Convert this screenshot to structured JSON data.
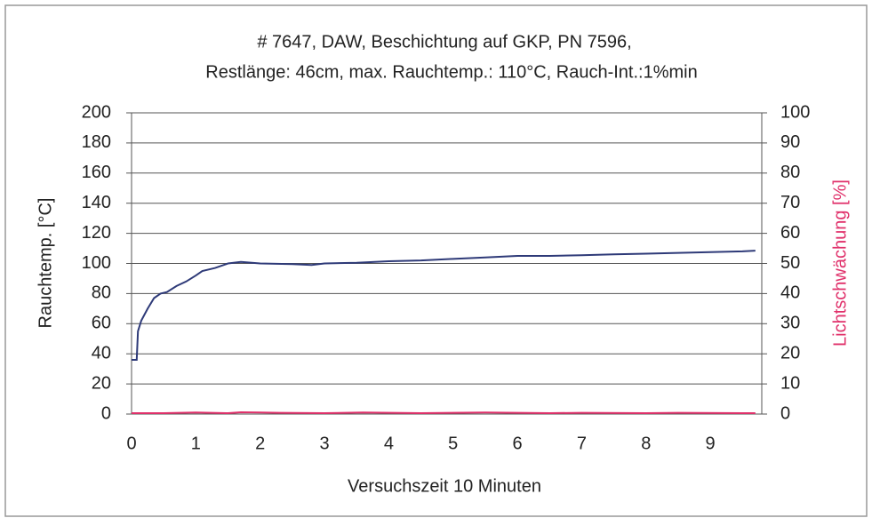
{
  "chart_data": {
    "type": "line",
    "title": [
      "# 7647, DAW, Beschichtung auf GKP, PN 7596,",
      "Restlänge: 46cm, max. Rauchtemp.: 110°C, Rauch-Int.:1%min"
    ],
    "xlabel": "Versuchszeit 10 Minuten",
    "ylabel": "Rauchtemp. [°C]",
    "y2label": "Lichtschwächung [%]",
    "xlim": [
      0,
      9.8
    ],
    "xticks": [
      0,
      1,
      2,
      3,
      4,
      5,
      6,
      7,
      8,
      9
    ],
    "ylim": [
      0,
      200
    ],
    "yticks": [
      0,
      20,
      40,
      60,
      80,
      100,
      120,
      140,
      160,
      180,
      200
    ],
    "y2lim": [
      0,
      100
    ],
    "y2ticks": [
      0,
      10,
      20,
      30,
      40,
      50,
      60,
      70,
      80,
      90,
      100
    ],
    "grid": true,
    "series": [
      {
        "name": "Rauchtemp.",
        "color": "#2e3a78",
        "x": [
          0,
          0.08,
          0.1,
          0.15,
          0.25,
          0.35,
          0.45,
          0.55,
          0.7,
          0.85,
          1.0,
          1.1,
          1.3,
          1.5,
          1.7,
          2.0,
          2.5,
          2.8,
          3.0,
          3.5,
          4.0,
          4.5,
          5.0,
          5.5,
          6.0,
          6.5,
          7.0,
          7.5,
          8.0,
          8.5,
          9.0,
          9.5,
          9.7
        ],
        "values": [
          36,
          36,
          55,
          62,
          70,
          77,
          80,
          81,
          85,
          88,
          92,
          95,
          97,
          100,
          101,
          100,
          99.5,
          99,
          100,
          100.5,
          101.5,
          102,
          103,
          104,
          105,
          105,
          105.5,
          106,
          106.5,
          107,
          107.5,
          108,
          108.5
        ]
      },
      {
        "name": "Lichtschwächung",
        "color": "#e0306a",
        "axis": "y2",
        "x": [
          0,
          0.5,
          1.0,
          1.5,
          1.7,
          2.0,
          2.3,
          3.0,
          3.6,
          4.5,
          5.5,
          6.5,
          7.0,
          8.0,
          8.5,
          9.5,
          9.7
        ],
        "values": [
          0.3,
          0.3,
          0.5,
          0.3,
          0.6,
          0.5,
          0.4,
          0.3,
          0.5,
          0.3,
          0.5,
          0.3,
          0.4,
          0.3,
          0.4,
          0.3,
          0.3
        ]
      }
    ]
  }
}
